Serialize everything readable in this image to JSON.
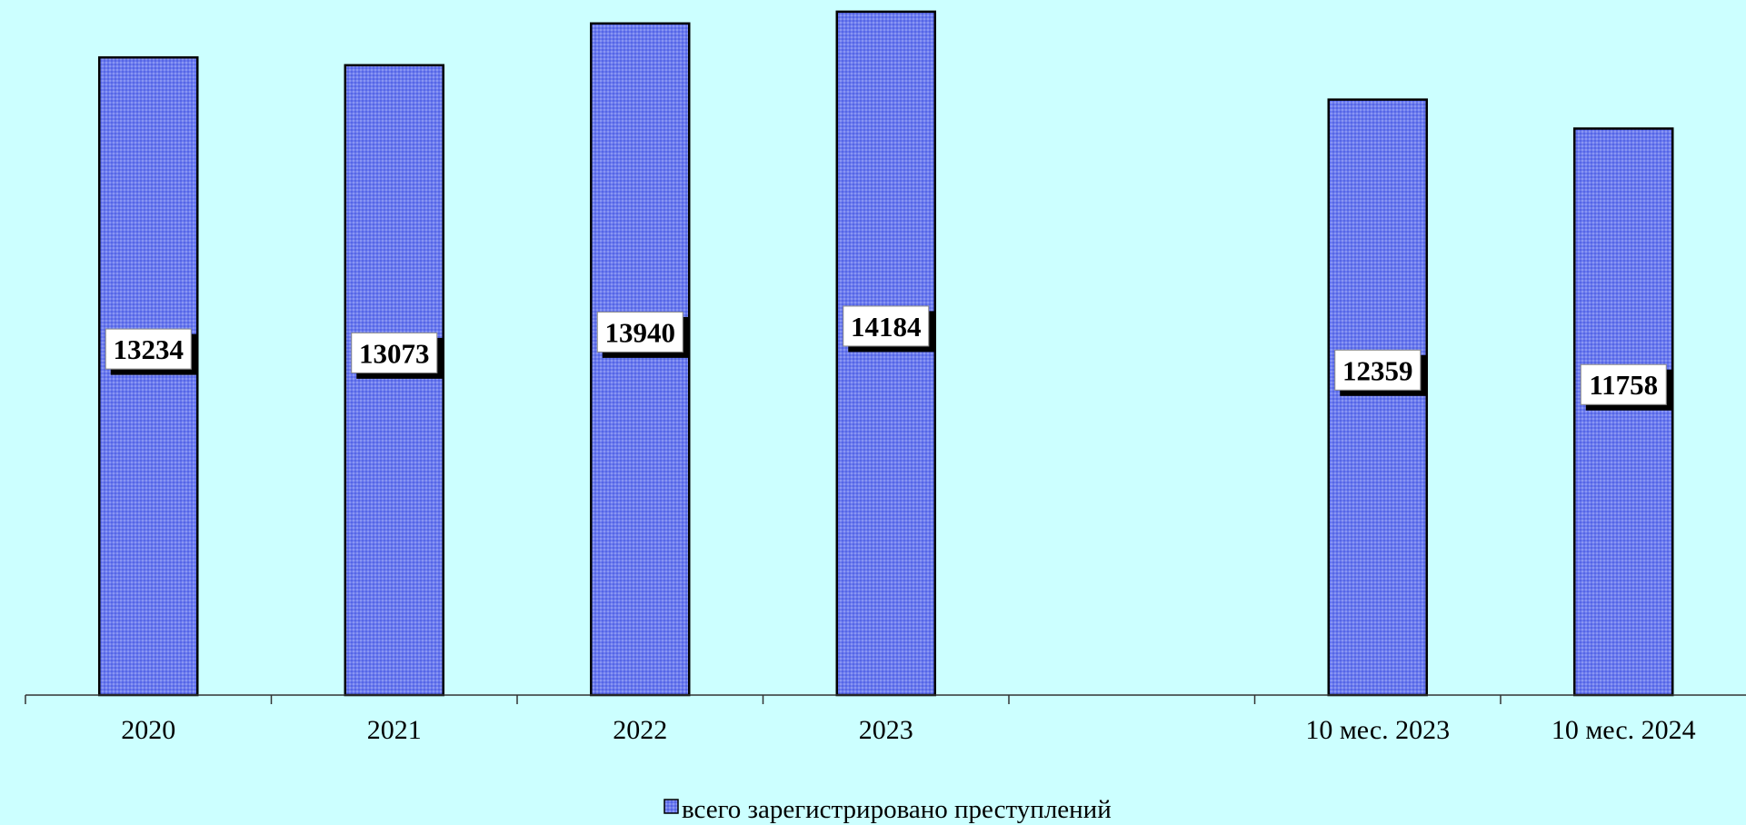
{
  "chart_data": {
    "type": "bar",
    "categories": [
      "2020",
      "2021",
      "2022",
      "2023",
      "",
      "10 мес. 2023",
      "10 мес. 2024"
    ],
    "series": [
      {
        "name": "всего зарегистрировано преступлений",
        "values": [
          13234,
          13073,
          13940,
          14184,
          null,
          12359,
          11758
        ]
      }
    ],
    "ylim": [
      0,
      14200
    ],
    "grid": false,
    "legend_position": "bottom-center",
    "colors": {
      "background": "#ccffff",
      "bar_fill": "#6b7bee",
      "bar_border": "#000000",
      "label_box": "#ffffff"
    }
  }
}
